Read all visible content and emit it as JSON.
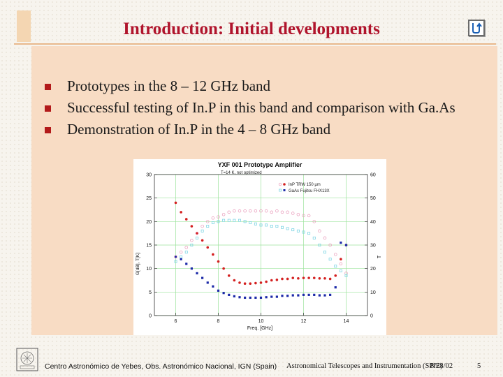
{
  "slide": {
    "title": "Introduction: Initial developments",
    "bullets": [
      "Prototypes in the 8 – 12 GHz band",
      "Successful testing of In.P in this band and comparison with  Ga.As",
      "Demonstration of In.P in the 4 – 8 GHz band"
    ],
    "nav_icon": "return-arrow-icon",
    "accent_color": "#b0142c",
    "panel_color": "#f8dcc4"
  },
  "chart_data": {
    "type": "line",
    "title": "YXF 001 Prototype Amplifier",
    "subtitle": "T=14 K, not optimized",
    "xlabel": "Freq. [GHz]",
    "ylabel_left": "G[dB], T[K]",
    "ylabel_right": "T",
    "xlim": [
      5,
      15
    ],
    "ylim": [
      0,
      30
    ],
    "ylim_right": [
      0,
      60
    ],
    "x_ticks": [
      "6",
      "8",
      "10",
      "12",
      "14"
    ],
    "y_ticks_left": [
      "0",
      "5",
      "10",
      "15",
      "20",
      "25",
      "30"
    ],
    "y_ticks_right": [
      "0",
      "10",
      "20",
      "30",
      "40",
      "50",
      "60"
    ],
    "grid": true,
    "legend_position": "top-right",
    "legend": [
      "InP  TRW 150 µm",
      "GaAs Fujitsu FHX13X"
    ],
    "series": [
      {
        "name": "InP  TRW 150 µm",
        "axis": "left",
        "style": "dots",
        "color": "#d42020",
        "x": [
          6.0,
          6.25,
          6.5,
          6.75,
          7.0,
          7.25,
          7.5,
          7.75,
          8.0,
          8.25,
          8.5,
          8.75,
          9.0,
          9.25,
          9.5,
          9.75,
          10.0,
          10.25,
          10.5,
          10.75,
          11.0,
          11.25,
          11.5,
          11.75,
          12.0,
          12.25,
          12.5,
          12.75,
          13.0,
          13.25,
          13.5,
          13.75,
          14.0
        ],
        "y": [
          24,
          22,
          20.5,
          19,
          17.5,
          16,
          14.5,
          13,
          11.5,
          10,
          8.5,
          7.5,
          7,
          6.8,
          6.8,
          6.9,
          7,
          7.2,
          7.5,
          7.6,
          7.8,
          7.8,
          8,
          7.9,
          8,
          8,
          8,
          7.9,
          7.9,
          7.8,
          8.5,
          12,
          15
        ]
      },
      {
        "name": "GaAs Fujitsu FHX13X",
        "axis": "left",
        "style": "squares",
        "color": "#1c2aa8",
        "x": [
          6.0,
          6.25,
          6.5,
          6.75,
          7.0,
          7.25,
          7.5,
          7.75,
          8.0,
          8.25,
          8.5,
          8.75,
          9.0,
          9.25,
          9.5,
          9.75,
          10.0,
          10.25,
          10.5,
          10.75,
          11.0,
          11.25,
          11.5,
          11.75,
          12.0,
          12.25,
          12.5,
          12.75,
          13.0,
          13.25,
          13.5,
          13.75,
          14.0
        ],
        "y": [
          12.5,
          12,
          11,
          10,
          9,
          8,
          7,
          6.2,
          5.3,
          4.8,
          4.4,
          4.1,
          3.9,
          3.8,
          3.8,
          3.8,
          3.8,
          3.9,
          4,
          4,
          4.2,
          4.2,
          4.3,
          4.3,
          4.4,
          4.4,
          4.4,
          4.3,
          4.3,
          4.4,
          6,
          15.5,
          15
        ]
      },
      {
        "name": "",
        "axis": "right",
        "style": "open-circles",
        "color": "#e898b8",
        "x": [
          6.0,
          6.25,
          6.5,
          6.75,
          7.0,
          7.25,
          7.5,
          7.75,
          8.0,
          8.25,
          8.5,
          8.75,
          9.0,
          9.25,
          9.5,
          9.75,
          10.0,
          10.25,
          10.5,
          10.75,
          11.0,
          11.25,
          11.5,
          11.75,
          12.0,
          12.25,
          12.5,
          12.75,
          13.0,
          13.25,
          13.5,
          13.75,
          14.0
        ],
        "y": [
          25,
          27,
          29,
          32,
          35,
          38,
          40,
          41.5,
          42,
          43,
          44,
          44.5,
          44.5,
          44.5,
          44.5,
          44.5,
          44.5,
          44.5,
          44,
          44.5,
          44,
          44,
          43.5,
          43,
          42.5,
          42.5,
          40,
          36,
          33,
          30,
          26,
          22,
          18
        ]
      },
      {
        "name": "",
        "axis": "right",
        "style": "open-squares",
        "color": "#70d0e0",
        "x": [
          6.0,
          6.25,
          6.5,
          6.75,
          7.0,
          7.25,
          7.5,
          7.75,
          8.0,
          8.25,
          8.5,
          8.75,
          9.0,
          9.25,
          9.5,
          9.75,
          10.0,
          10.25,
          10.5,
          10.75,
          11.0,
          11.25,
          11.5,
          11.75,
          12.0,
          12.25,
          12.5,
          12.75,
          13.0,
          13.25,
          13.5,
          13.75,
          14.0
        ],
        "y": [
          23,
          25,
          27,
          30,
          33,
          36,
          38,
          39.5,
          40,
          40.5,
          40.5,
          40.5,
          40.5,
          40,
          39.5,
          39,
          38.5,
          38.5,
          38,
          38,
          37.5,
          37,
          36.5,
          36,
          35.5,
          35,
          33,
          30,
          27,
          24,
          21,
          19,
          17
        ]
      }
    ]
  },
  "footer": {
    "institution": "Centro Astronómico de Yebes, Obs. Astronómico Nacional, IGN (Spain)",
    "conference": "Astronomical Telescopes and Instrumentation (SPIE)",
    "date": "8/28/02",
    "page": "5",
    "logo_icon": "institution-seal-icon"
  }
}
